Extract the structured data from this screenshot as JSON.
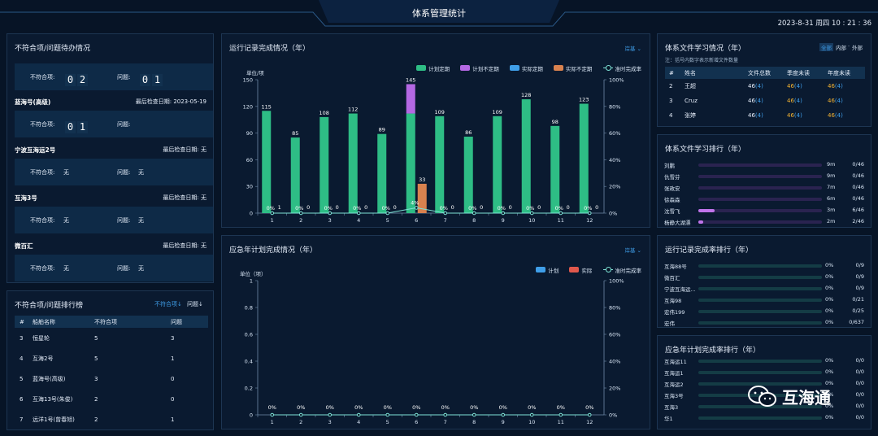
{
  "header": {
    "title": "体系管理统计",
    "datetime": "2023-8-31 周四 10 : 21 : 36"
  },
  "pending": {
    "title": "不符合项/问题待办情况",
    "cutoff_text": "",
    "first_card": {
      "label_nc": "不符合项:",
      "nc_digits": [
        "0",
        "2"
      ],
      "label_issue": "问题:",
      "issue_digits": [
        "0",
        "1"
      ]
    },
    "ships": [
      {
        "name": "蓝海号(高级)",
        "date_label": "最后检查日期: 2023-05-19",
        "label_nc": "不符合项:",
        "nc_digits": [
          "0",
          "1"
        ],
        "nc_text": "",
        "label_issue": "问题:",
        "issue_text": ""
      },
      {
        "name": "宁波互海运2号",
        "date_label": "最后检查日期: 无",
        "label_nc": "不符合项:",
        "nc_digits": [],
        "nc_text": "无",
        "label_issue": "问题:",
        "issue_text": "无"
      },
      {
        "name": "互海3号",
        "date_label": "最后检查日期: 无",
        "label_nc": "不符合项:",
        "nc_digits": [],
        "nc_text": "无",
        "label_issue": "问题:",
        "issue_text": "无"
      },
      {
        "name": "微百汇",
        "date_label": "最后检查日期: 无",
        "label_nc": "不符合项:",
        "nc_digits": [],
        "nc_text": "无",
        "label_issue": "问题:",
        "issue_text": "无"
      }
    ]
  },
  "ranking": {
    "title": "不符合项/问题排行榜",
    "sort_nc": "不符合项↓",
    "sort_issue": "问题↓",
    "headers": [
      "#",
      "船舶名称",
      "不符合项",
      "问题"
    ],
    "rows": [
      [
        "3",
        "恒星轮",
        "5",
        "3"
      ],
      [
        "4",
        "互海2号",
        "5",
        "1"
      ],
      [
        "5",
        "蓝海号(高级)",
        "3",
        "0"
      ],
      [
        "6",
        "互海13号(朱俊)",
        "2",
        "0"
      ],
      [
        "7",
        "远洋1号(曾春旭)",
        "2",
        "1"
      ]
    ]
  },
  "records_chart_panel": {
    "title": "运行记录完成情况（年）",
    "filter": "岸基 ⌄",
    "legend": [
      "计划定期",
      "计划不定期",
      "实际定期",
      "实际不定期",
      "准时完成率"
    ]
  },
  "emergency_chart_panel": {
    "title": "应急年计划完成情况（年）",
    "filter": "岸基 ⌄",
    "legend": [
      "计划",
      "实际",
      "准时完成率"
    ]
  },
  "chart_data": [
    {
      "type": "bar",
      "title": "运行记录完成情况（年）",
      "ylabel": "单位/项",
      "categories": [
        "1",
        "2",
        "3",
        "4",
        "5",
        "6",
        "7",
        "8",
        "9",
        "10",
        "11",
        "12"
      ],
      "ylim": [
        0,
        150
      ],
      "y_ticks": [
        "0",
        "30",
        "60",
        "90",
        "120",
        "150"
      ],
      "y2lim": [
        0,
        100
      ],
      "y2_ticks": [
        "0%",
        "20%",
        "40%",
        "60%",
        "80%",
        "100%"
      ],
      "series": [
        {
          "name": "计划定期",
          "color": "#2ebd85",
          "values": [
            115,
            85,
            108,
            112,
            89,
            112,
            109,
            86,
            109,
            128,
            98,
            123
          ]
        },
        {
          "name": "计划不定期",
          "color": "#b468e3",
          "values": [
            0,
            0,
            0,
            0,
            0,
            33,
            0,
            0,
            0,
            0,
            0,
            0
          ]
        },
        {
          "name": "实际定期",
          "color": "#3f9ee8",
          "values": [
            1,
            0,
            0,
            0,
            0,
            0,
            0,
            0,
            0,
            0,
            0,
            0
          ]
        },
        {
          "name": "实际不定期",
          "color": "#d9824f",
          "values": [
            0,
            0,
            0,
            0,
            0,
            33,
            0,
            0,
            0,
            0,
            0,
            0
          ]
        },
        {
          "name": "准时完成率",
          "color": "#7ee3d6",
          "values": [
            0,
            0,
            0,
            0,
            0,
            4,
            0,
            0,
            0,
            0,
            0,
            0
          ]
        }
      ],
      "top_labels": [
        "115",
        "85",
        "108",
        "112",
        "89",
        "145",
        "109",
        "86",
        "109",
        "128",
        "98",
        "123"
      ],
      "actual_labels": [
        "1",
        "0",
        "0",
        "0",
        "0",
        "33",
        "0",
        "0",
        "0",
        "0",
        "0",
        "0"
      ],
      "rate_labels": [
        "0%",
        "0%",
        "0%",
        "0%",
        "0%",
        "4%",
        "0%",
        "0%",
        "0%",
        "0%",
        "0%",
        "0%"
      ]
    },
    {
      "type": "bar",
      "title": "应急年计划完成情况（年）",
      "ylabel": "单位（项）",
      "categories": [
        "1",
        "2",
        "3",
        "4",
        "5",
        "6",
        "7",
        "8",
        "9",
        "10",
        "11",
        "12"
      ],
      "ylim": [
        0,
        1
      ],
      "y_ticks": [
        "0",
        "0.2",
        "0.4",
        "0.6",
        "0.8",
        "1"
      ],
      "y2lim": [
        0,
        100
      ],
      "y2_ticks": [
        "0%",
        "20%",
        "40%",
        "60%",
        "80%",
        "100%"
      ],
      "series": [
        {
          "name": "计划",
          "color": "#3f9ee8",
          "values": [
            0,
            0,
            0,
            0,
            0,
            0,
            0,
            0,
            0,
            0,
            0,
            0
          ]
        },
        {
          "name": "实际",
          "color": "#e0584c",
          "values": [
            0,
            0,
            0,
            0,
            0,
            0,
            0,
            0,
            0,
            0,
            0,
            0
          ]
        },
        {
          "name": "准时完成率",
          "color": "#7ee3d6",
          "values": [
            0,
            0,
            0,
            0,
            0,
            0,
            0,
            0,
            0,
            0,
            0,
            0
          ]
        }
      ],
      "rate_labels": [
        "0%",
        "0%",
        "0%",
        "0%",
        "0%",
        "0%",
        "0%",
        "0%",
        "0%",
        "0%",
        "0%",
        "0%"
      ]
    }
  ],
  "study": {
    "title": "体系文件学习情况（年）",
    "toggle_all": "全部",
    "toggle_in": "内部",
    "toggle_out": "外部",
    "note": "注：括号内数字表示新增文件数量",
    "headers": [
      "#",
      "姓名",
      "文件总数",
      "季度未读",
      "年度未读"
    ],
    "rows": [
      {
        "idx": "2",
        "name": "王超",
        "total": "46",
        "total_new": "(4)",
        "q": "46",
        "q_new": "(4)",
        "y": "46",
        "y_new": "(4)"
      },
      {
        "idx": "3",
        "name": "Cruz",
        "total": "46",
        "total_new": "(4)",
        "q": "46",
        "q_new": "(4)",
        "y": "46",
        "y_new": "(4)"
      },
      {
        "idx": "4",
        "name": "张婷",
        "total": "46",
        "total_new": "(4)",
        "q": "46",
        "q_new": "(4)",
        "y": "46",
        "y_new": "(4)"
      }
    ]
  },
  "study_rank": {
    "title": "体系文件学习排行（年）",
    "rows": [
      {
        "name": "刘鹏",
        "time": "9m",
        "score": "0/46",
        "ratio": 0
      },
      {
        "name": "仇雪芬",
        "time": "9m",
        "score": "0/46",
        "ratio": 0
      },
      {
        "name": "张政安",
        "time": "7m",
        "score": "0/46",
        "ratio": 0
      },
      {
        "name": "徐森森",
        "time": "6m",
        "score": "0/46",
        "ratio": 0
      },
      {
        "name": "沈雪飞",
        "time": "3m",
        "score": "6/46",
        "ratio": 0.13
      },
      {
        "name": "杨静大湖漂",
        "time": "2m",
        "score": "2/46",
        "ratio": 0.04
      }
    ]
  },
  "records_rank": {
    "title": "运行记录完成率排行（年）",
    "rows": [
      {
        "name": "互海88号",
        "pct": "0%",
        "score": "0/9"
      },
      {
        "name": "微百汇",
        "pct": "0%",
        "score": "0/9"
      },
      {
        "name": "宁波互海运...",
        "pct": "0%",
        "score": "0/9"
      },
      {
        "name": "互海98",
        "pct": "0%",
        "score": "0/21"
      },
      {
        "name": "宏伟199",
        "pct": "0%",
        "score": "0/25"
      },
      {
        "name": "宏伟",
        "pct": "0%",
        "score": "0/637"
      }
    ]
  },
  "emergency_rank": {
    "title": "应急年计划完成率排行（年）",
    "rows": [
      {
        "name": "互海运11",
        "pct": "0%",
        "score": "0/0"
      },
      {
        "name": "互海运1",
        "pct": "0%",
        "score": "0/0"
      },
      {
        "name": "互海运2",
        "pct": "0%",
        "score": "0/0"
      },
      {
        "name": "互海3号",
        "pct": "0%",
        "score": "0/0"
      },
      {
        "name": "互海3",
        "pct": "0%",
        "score": "0/0"
      },
      {
        "name": "华1",
        "pct": "0%",
        "score": "0/0"
      }
    ]
  },
  "watermark": {
    "text": "互海通"
  }
}
